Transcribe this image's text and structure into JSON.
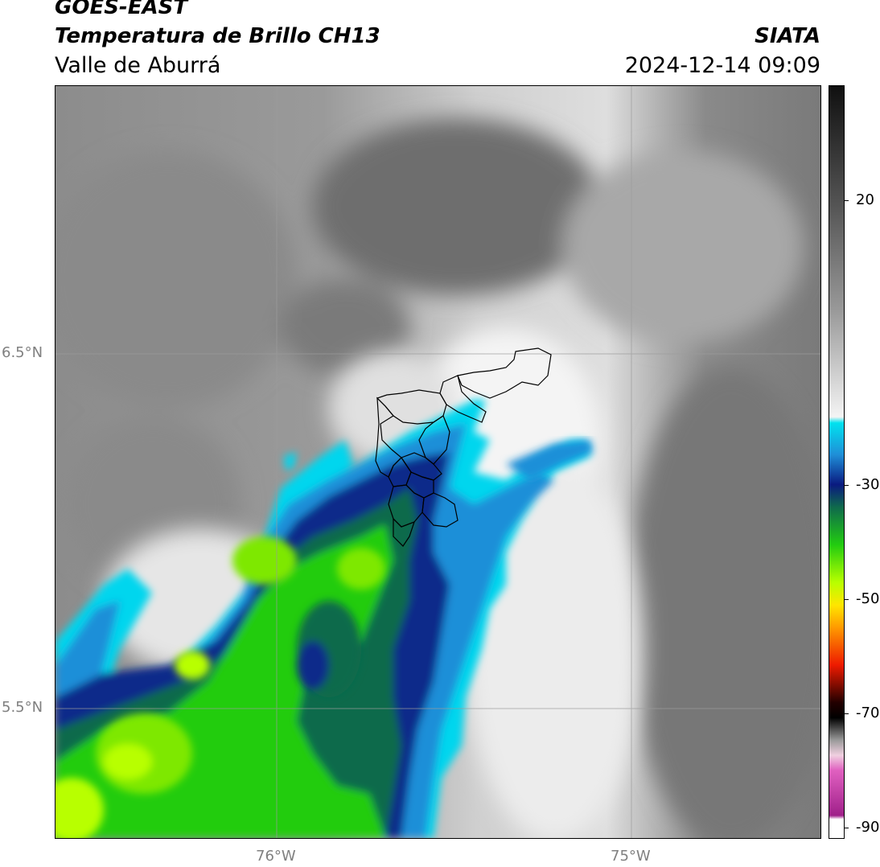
{
  "header": {
    "satellite": "GOES-EAST",
    "product": "Temperatura de Brillo CH13",
    "region": "Valle de Aburrá",
    "org": "SIATA",
    "datetime": "2024-12-14 09:09"
  },
  "map": {
    "lat_labels": [
      "6.5°N",
      "5.5°N"
    ],
    "lon_labels": [
      "76°W",
      "75°W"
    ]
  },
  "colorbar": {
    "ticks": [
      "20",
      "-30",
      "-50",
      "-70",
      "-90"
    ],
    "range": [
      -90,
      35
    ],
    "colors": {
      "warm": "#6e6e6e",
      "cool": "#f0f0f0",
      "cyan": "#00d6ee",
      "blue": "#1f8fd8",
      "navy": "#0a2a8a",
      "dkgreen": "#0f6a4c",
      "green": "#22cc10",
      "lime": "#b8ff00",
      "yellow": "#ffe600",
      "red": "#ee1a00",
      "magenta": "#cc30b0"
    }
  }
}
